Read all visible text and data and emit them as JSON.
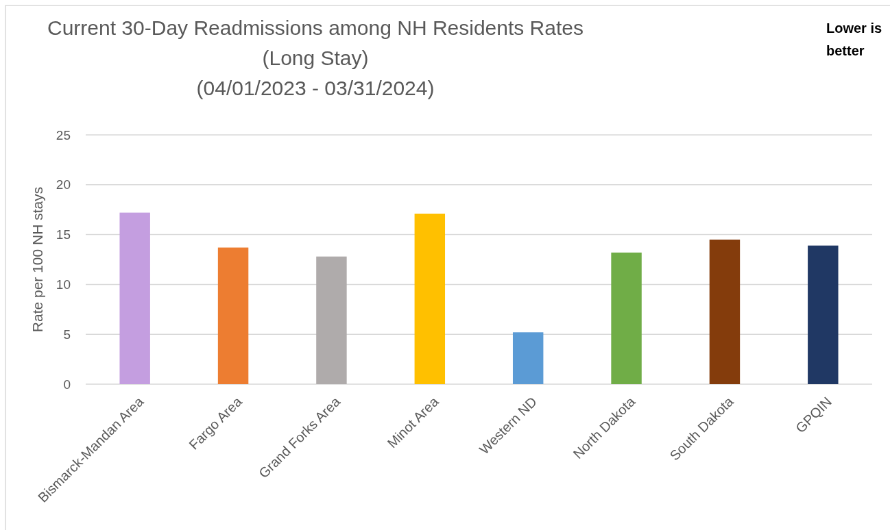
{
  "chart_data": {
    "type": "bar",
    "title": "Current 30-Day Readmissions among NH Residents Rates\n(Long Stay)\n(04/01/2023 - 03/31/2024)",
    "ylabel": "Rate per 100 NH stays",
    "categories": [
      "Bismarck-Mandan Area",
      "Fargo Area",
      "Grand Forks Area",
      "Minot Area",
      "Western ND",
      "North Dakota",
      "South Dakota",
      "GPQIN"
    ],
    "values": [
      17.2,
      13.7,
      12.8,
      17.1,
      5.2,
      13.2,
      14.5,
      13.9
    ],
    "colors": [
      "#c49ee0",
      "#ed7d31",
      "#afabab",
      "#ffc000",
      "#5b9bd5",
      "#70ad47",
      "#843c0c",
      "#203864"
    ],
    "ylim": [
      0,
      25
    ],
    "yticks": [
      0,
      5,
      10,
      15,
      20,
      25
    ],
    "grid": "y",
    "annotations": [
      "Lower is better"
    ]
  }
}
